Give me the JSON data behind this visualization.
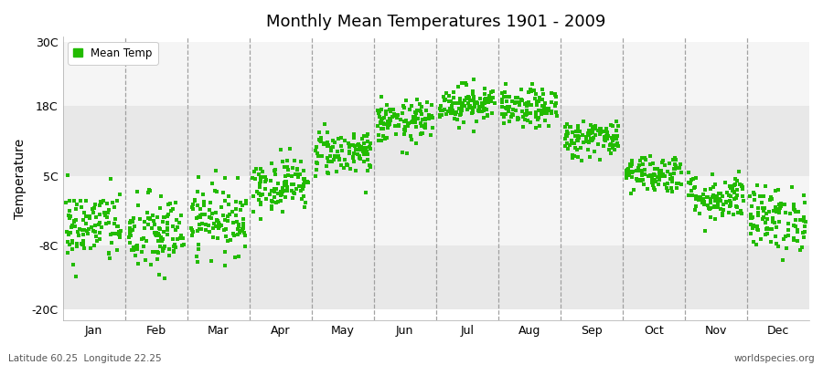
{
  "title": "Monthly Mean Temperatures 1901 - 2009",
  "ylabel": "Temperature",
  "yticks": [
    -20,
    -8,
    5,
    18,
    30
  ],
  "ytick_labels": [
    "-20C",
    "-8C",
    "5C",
    "18C",
    "30C"
  ],
  "ylim": [
    -22,
    31
  ],
  "months": [
    "Jan",
    "Feb",
    "Mar",
    "Apr",
    "May",
    "Jun",
    "Jul",
    "Aug",
    "Sep",
    "Oct",
    "Nov",
    "Dec"
  ],
  "dot_color": "#22bb00",
  "bg_color": "#f0f0f0",
  "fig_color": "#ffffff",
  "legend_label": "Mean Temp",
  "bottom_left": "Latitude 60.25  Longitude 22.25",
  "bottom_right": "worldspecies.org",
  "n_years": 109,
  "monthly_means": [
    -4.5,
    -6.0,
    -3.0,
    3.5,
    9.5,
    15.0,
    18.5,
    17.5,
    12.0,
    5.5,
    1.0,
    -3.0
  ],
  "monthly_stds": [
    3.5,
    3.8,
    3.2,
    2.5,
    2.2,
    2.0,
    1.8,
    1.8,
    1.8,
    1.8,
    2.2,
    3.0
  ],
  "seed": 42,
  "band_colors": [
    "#e8e8e8",
    "#f5f5f5"
  ],
  "dashed_color": "#999999"
}
